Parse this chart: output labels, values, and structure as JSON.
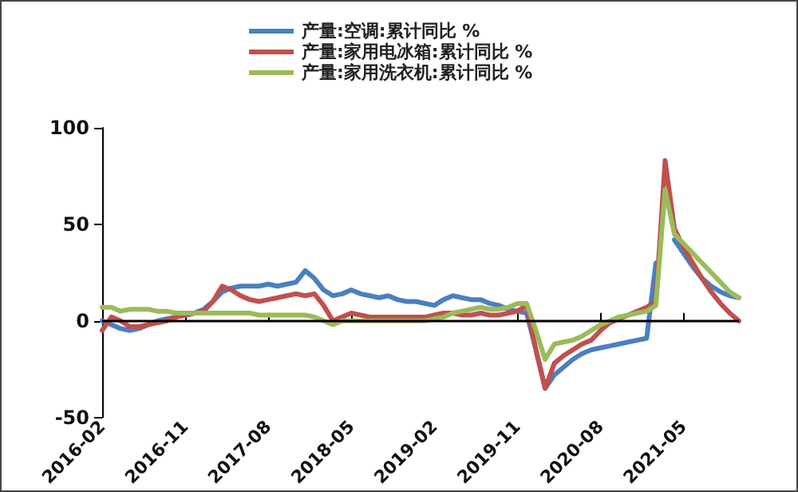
{
  "chart_data": {
    "type": "line",
    "categories": [
      "2016-02",
      null,
      null,
      null,
      null,
      null,
      null,
      null,
      null,
      "2016-11",
      null,
      null,
      null,
      null,
      null,
      null,
      null,
      null,
      "2017-08",
      null,
      null,
      null,
      null,
      null,
      null,
      null,
      null,
      "2018-05",
      null,
      null,
      null,
      null,
      null,
      null,
      null,
      null,
      "2019-02",
      null,
      null,
      null,
      null,
      null,
      null,
      null,
      null,
      "2019-11",
      null,
      null,
      null,
      null,
      null,
      null,
      null,
      null,
      "2020-08",
      null,
      null,
      null,
      null,
      null,
      null,
      null,
      null,
      "2021-05",
      null,
      null,
      null,
      null,
      null,
      null
    ],
    "series": [
      {
        "name": "产量:空调:累计同比 %",
        "color": "#4a7fc1",
        "values": [
          0,
          -2,
          -4,
          -5,
          -4,
          -2,
          0,
          1,
          2,
          3,
          4,
          6,
          10,
          15,
          17,
          18,
          18,
          18,
          19,
          18,
          19,
          20,
          26,
          22,
          16,
          13,
          14,
          16,
          14,
          13,
          12,
          13,
          11,
          10,
          10,
          9,
          8,
          11,
          13,
          12,
          11,
          11,
          9,
          8,
          6,
          5,
          4,
          -15,
          -35,
          -28,
          -24,
          -20,
          -17,
          -15,
          -14,
          -13,
          -12,
          -11,
          -10,
          -9,
          30,
          null,
          42,
          35,
          28,
          22,
          18,
          15,
          13,
          12
        ]
      },
      {
        "name": "产量:家用电冰箱:累计同比 %",
        "color": "#c0504d",
        "values": [
          -5,
          2,
          0,
          -3,
          -3,
          -2,
          -1,
          0,
          2,
          3,
          4,
          5,
          10,
          18,
          16,
          13,
          11,
          10,
          11,
          12,
          13,
          14,
          13,
          14,
          8,
          0,
          2,
          4,
          3,
          2,
          2,
          2,
          2,
          2,
          2,
          2,
          3,
          4,
          4,
          3,
          3,
          4,
          3,
          3,
          4,
          5,
          8,
          -15,
          -35,
          -22,
          -18,
          -15,
          -12,
          -10,
          -5,
          -1,
          1,
          3,
          5,
          7,
          10,
          83,
          48,
          38,
          30,
          22,
          15,
          9,
          4,
          0
        ]
      },
      {
        "name": "产量:家用洗衣机:累计同比 %",
        "color": "#9bbb59",
        "values": [
          7,
          7,
          5,
          6,
          6,
          6,
          5,
          5,
          4,
          4,
          4,
          4,
          4,
          4,
          4,
          4,
          4,
          3,
          3,
          3,
          3,
          3,
          3,
          2,
          0,
          -2,
          0,
          0,
          0,
          0,
          0,
          0,
          0,
          0,
          0,
          0,
          1,
          2,
          4,
          5,
          6,
          7,
          6,
          6,
          7,
          9,
          9,
          -5,
          -20,
          -12,
          -11,
          -10,
          -8,
          -5,
          -2,
          0,
          2,
          3,
          4,
          5,
          8,
          68,
          45,
          40,
          35,
          30,
          25,
          20,
          15,
          12
        ]
      }
    ],
    "ref_lines": [
      {
        "axis": "y",
        "value": 0,
        "color": "#000000"
      }
    ],
    "ylim": [
      -50,
      100
    ],
    "yticks": [
      -50,
      0,
      50,
      100
    ],
    "grid": false,
    "legend": "top",
    "marker": "none",
    "line_style": "solid"
  }
}
